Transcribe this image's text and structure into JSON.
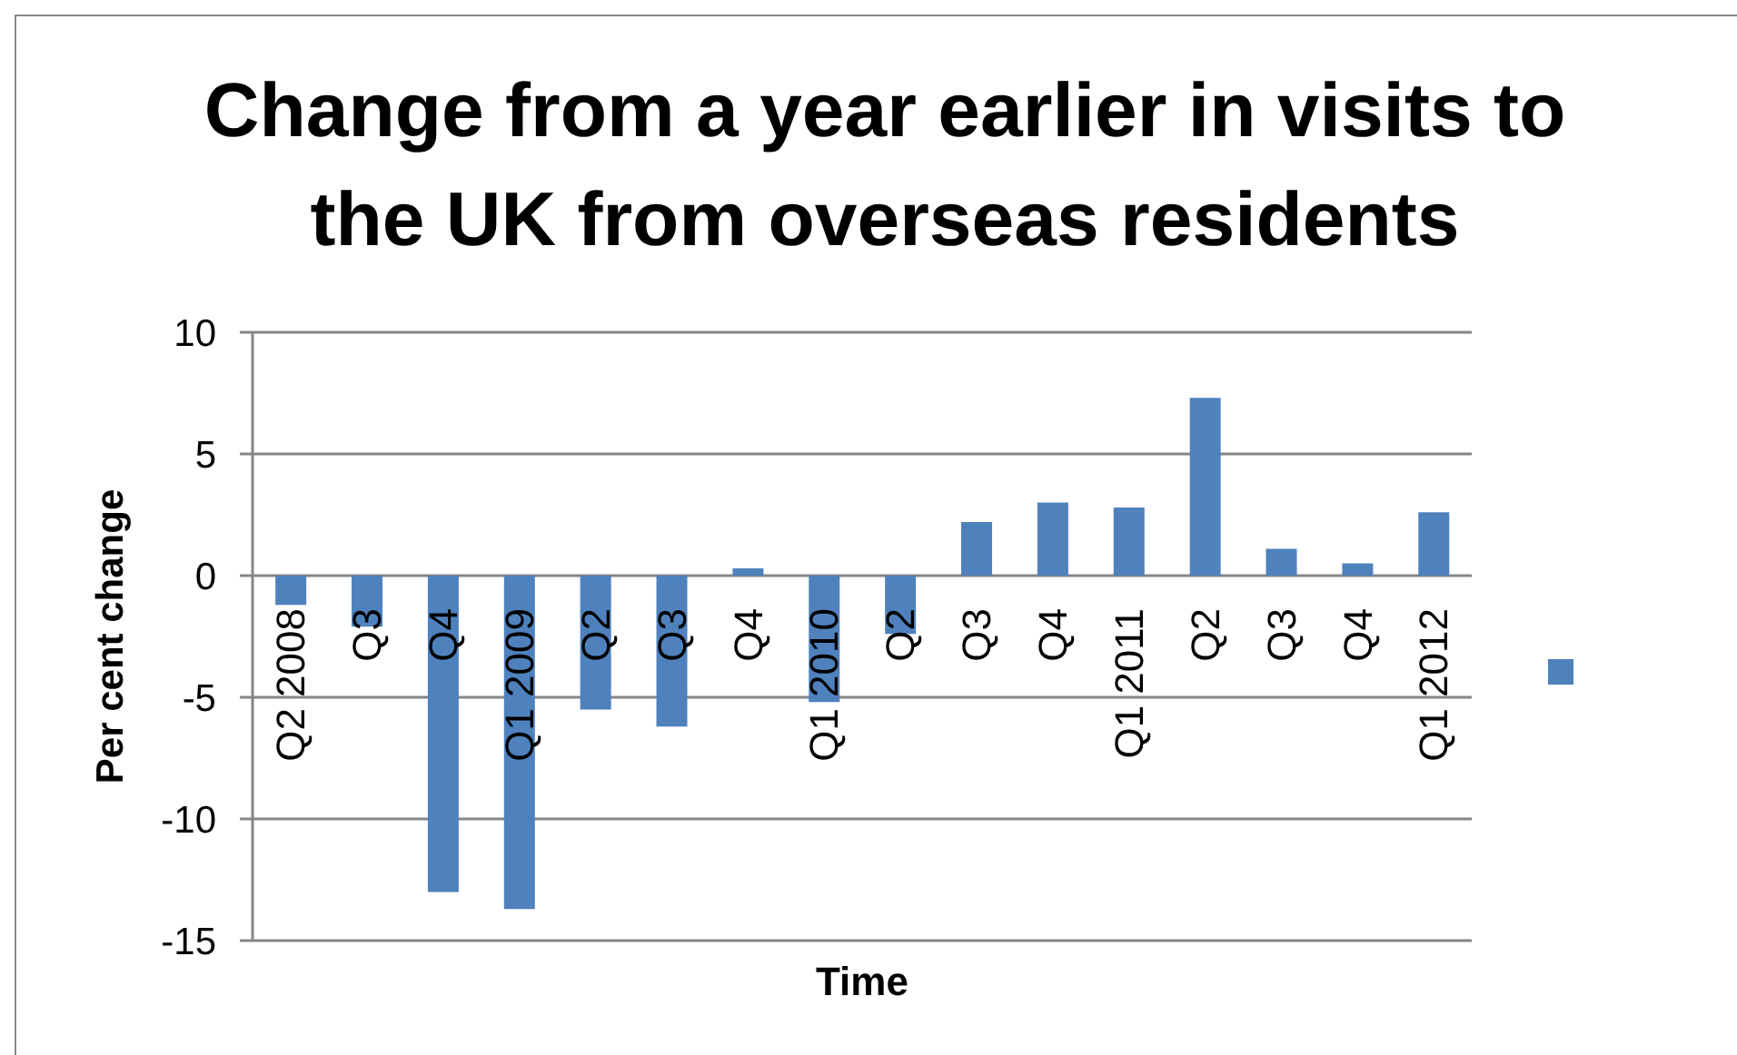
{
  "chart_data": {
    "type": "bar",
    "title": "Change from a year earlier in visits to the UK from overseas residents",
    "xlabel": "Time",
    "ylabel": "Per cent change",
    "categories": [
      "Q2 2008",
      "Q3",
      "Q4",
      "Q1 2009",
      "Q2",
      "Q3",
      "Q4",
      "Q1 2010",
      "Q2",
      "Q3",
      "Q4",
      "Q1 2011",
      "Q2",
      "Q3",
      "Q4",
      "Q1 2012"
    ],
    "series": [
      {
        "color": "#4f81bd",
        "values": [
          -1.2,
          -2.1,
          -13.0,
          -13.7,
          -5.5,
          -6.2,
          0.3,
          -5.2,
          -2.4,
          2.2,
          3.0,
          2.8,
          7.3,
          1.1,
          0.5,
          2.6
        ]
      }
    ],
    "ylim": [
      -15,
      10
    ],
    "yticks": [
      -15,
      -10,
      -5,
      0,
      5,
      10
    ],
    "grid": "y"
  }
}
